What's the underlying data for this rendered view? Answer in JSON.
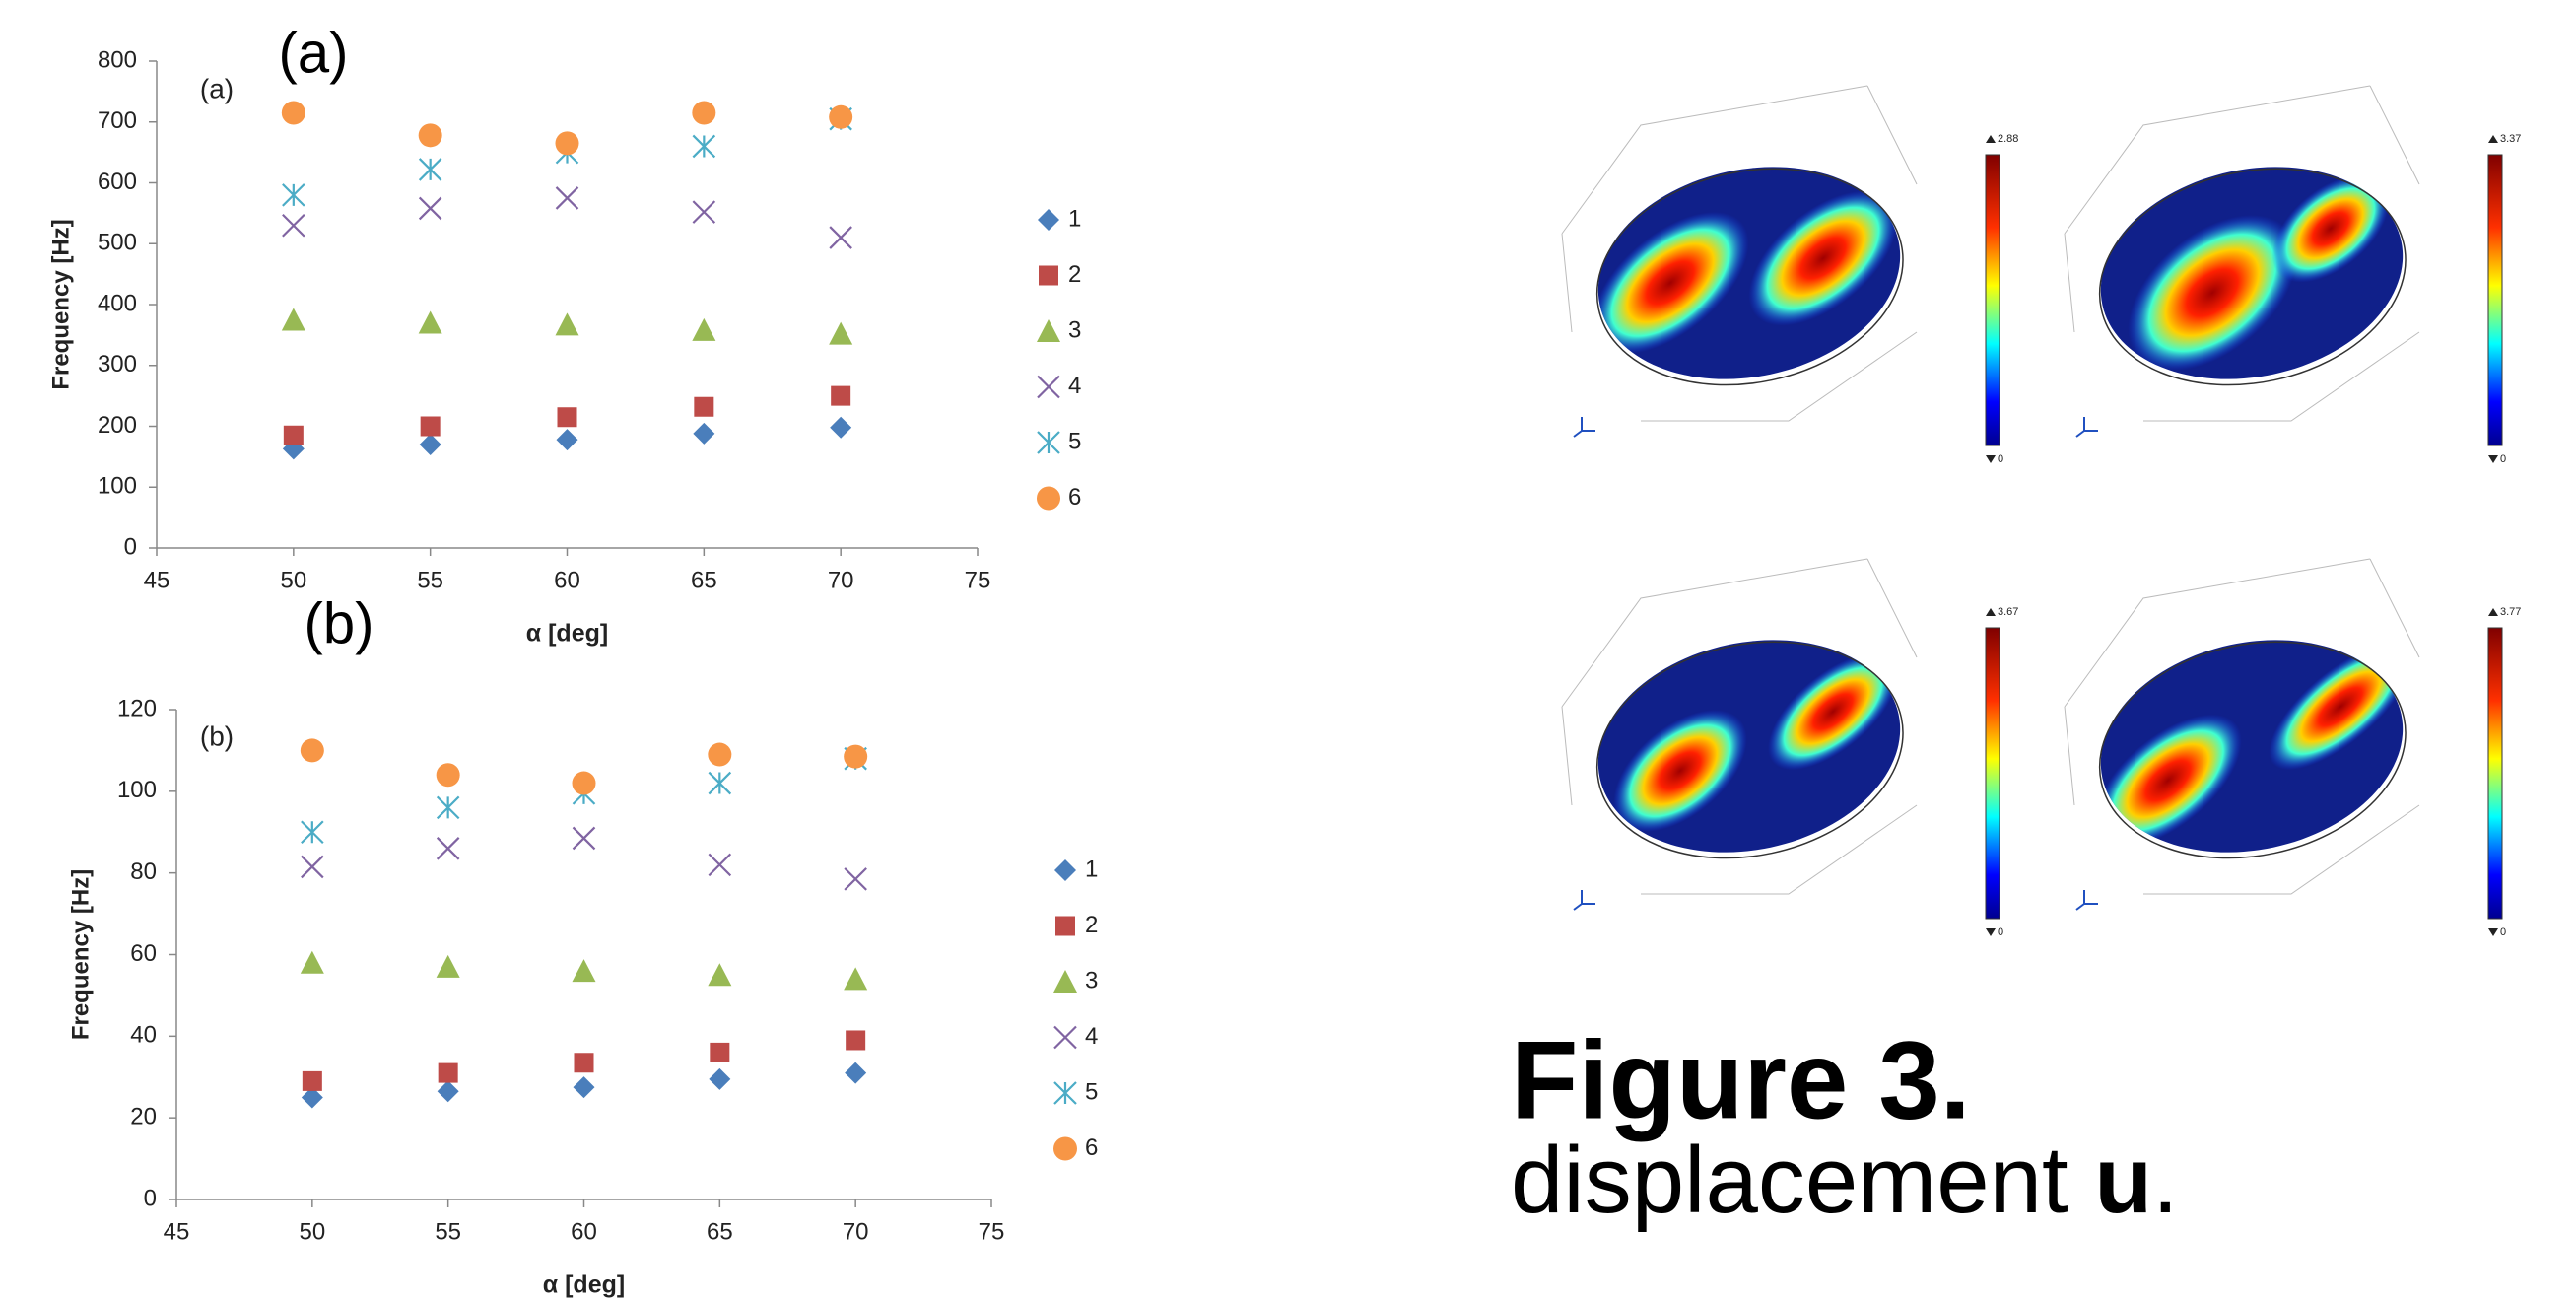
{
  "chart_data": [
    {
      "type": "scatter",
      "panel_label": "(a)",
      "inner_label": "(a)",
      "x_label": "α [deg]",
      "y_label": "Frequency [Hz]",
      "x": [
        50,
        55,
        60,
        65,
        70
      ],
      "xlim": [
        45,
        75
      ],
      "xticks": [
        45,
        50,
        55,
        60,
        65,
        70,
        75
      ],
      "ylim": [
        0,
        800
      ],
      "yticks": [
        0,
        100,
        200,
        300,
        400,
        500,
        600,
        700,
        800
      ],
      "series": [
        {
          "name": "1",
          "color": "#4a7ebb",
          "marker": "diamond",
          "values": [
            163,
            170,
            178,
            188,
            198
          ]
        },
        {
          "name": "2",
          "color": "#be4b48",
          "marker": "square",
          "values": [
            185,
            200,
            215,
            232,
            250
          ]
        },
        {
          "name": "3",
          "color": "#98b954",
          "marker": "triangle",
          "values": [
            375,
            370,
            367,
            358,
            352
          ]
        },
        {
          "name": "4",
          "color": "#8064a2",
          "marker": "x",
          "values": [
            530,
            558,
            575,
            552,
            510
          ]
        },
        {
          "name": "5",
          "color": "#4bacc6",
          "marker": "star",
          "values": [
            580,
            622,
            650,
            660,
            705
          ]
        },
        {
          "name": "6",
          "color": "#f79646",
          "marker": "circle",
          "values": [
            715,
            678,
            665,
            715,
            708
          ]
        }
      ]
    },
    {
      "type": "scatter",
      "panel_label": "(b)",
      "inner_label": "(b)",
      "x_label": "α [deg]",
      "y_label": "Frequency [Hz]",
      "x": [
        50,
        55,
        60,
        65,
        70
      ],
      "xlim": [
        45,
        75
      ],
      "xticks": [
        45,
        50,
        55,
        60,
        65,
        70,
        75
      ],
      "ylim": [
        0,
        120
      ],
      "yticks": [
        0,
        20,
        40,
        60,
        80,
        100,
        120
      ],
      "series": [
        {
          "name": "1",
          "color": "#4a7ebb",
          "marker": "diamond",
          "values": [
            25,
            26.5,
            27.5,
            29.5,
            31
          ]
        },
        {
          "name": "2",
          "color": "#be4b48",
          "marker": "square",
          "values": [
            29,
            31,
            33.5,
            36,
            39
          ]
        },
        {
          "name": "3",
          "color": "#98b954",
          "marker": "triangle",
          "values": [
            58,
            57,
            56,
            55,
            54
          ]
        },
        {
          "name": "4",
          "color": "#8064a2",
          "marker": "x",
          "values": [
            81.5,
            86,
            88.5,
            82,
            78.5
          ]
        },
        {
          "name": "5",
          "color": "#4bacc6",
          "marker": "star",
          "values": [
            90,
            96,
            99.5,
            102,
            108
          ]
        },
        {
          "name": "6",
          "color": "#f79646",
          "marker": "circle",
          "values": [
            110,
            104,
            102,
            109,
            108.5
          ]
        }
      ]
    }
  ],
  "heatmaps": [
    {
      "max": 2.88,
      "min": 0
    },
    {
      "max": 3.37,
      "min": 0
    },
    {
      "max": 3.67,
      "min": 0
    },
    {
      "max": 3.77,
      "min": 0
    }
  ],
  "caption": {
    "title": "Figure 3.",
    "text": "displacement",
    "bold": "u",
    "end": "."
  }
}
